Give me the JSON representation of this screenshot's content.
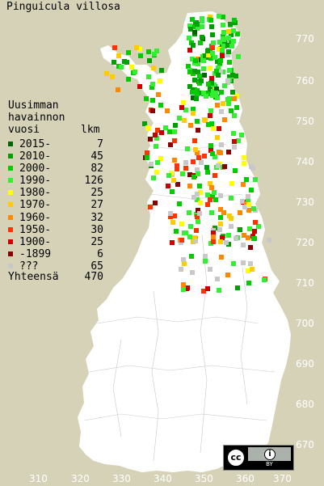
{
  "title": "Pinguicula villosa",
  "legend": {
    "heading": [
      "Uusimman",
      "havainnon",
      "vuosi"
    ],
    "count_header": "lkm",
    "rows": [
      {
        "label": "2015-",
        "count": "7",
        "color": "#006400"
      },
      {
        "label": "2010-",
        "count": "45",
        "color": "#00a000"
      },
      {
        "label": "2000-",
        "count": "82",
        "color": "#00cc00"
      },
      {
        "label": "1990-",
        "count": "126",
        "color": "#33ee33"
      },
      {
        "label": "1980-",
        "count": "25",
        "color": "#ffff00"
      },
      {
        "label": "1970-",
        "count": "27",
        "color": "#ffcc00"
      },
      {
        "label": "1960-",
        "count": "32",
        "color": "#ff8800"
      },
      {
        "label": "1950-",
        "count": "30",
        "color": "#ff3300"
      },
      {
        "label": "1900-",
        "count": "25",
        "color": "#cc0000"
      },
      {
        "label": "-1899",
        "count": "6",
        "color": "#880000"
      },
      {
        "label": "???",
        "count": "65",
        "color": "#c8c8c8"
      }
    ],
    "total_label": "Yhteensä",
    "total_count": "470"
  },
  "y_axis_labels": [
    "770",
    "760",
    "750",
    "740",
    "730",
    "720",
    "710",
    "700",
    "690",
    "680",
    "670"
  ],
  "x_axis_labels": [
    "310",
    "320",
    "330",
    "340",
    "350",
    "360",
    "370"
  ],
  "license": {
    "cc": "cc",
    "by": "BY"
  },
  "colors": {
    "background": "#d6d2b8",
    "land": "#ffffff",
    "borders": "#c8c8c8",
    "grid_labels": "#ffffff"
  }
}
